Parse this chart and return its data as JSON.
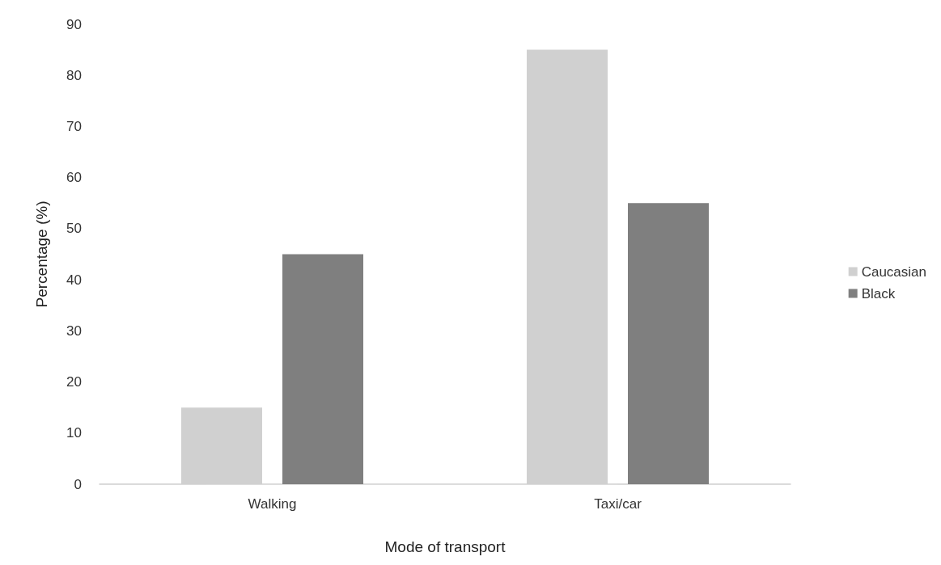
{
  "chart_data": {
    "type": "bar",
    "xlabel": "Mode of transport",
    "ylabel": "Percentage (%)",
    "categories": [
      "Walking",
      "Taxi/car"
    ],
    "series": [
      {
        "name": "Caucasian",
        "color": "#d0d0d0",
        "values": [
          15,
          85
        ]
      },
      {
        "name": "Black",
        "color": "#7f7f7f",
        "values": [
          45,
          55
        ]
      }
    ],
    "ylim": [
      0,
      90
    ],
    "yticks": [
      0,
      10,
      20,
      30,
      40,
      50,
      60,
      70,
      80,
      90
    ],
    "grid": false,
    "legend": "right"
  }
}
